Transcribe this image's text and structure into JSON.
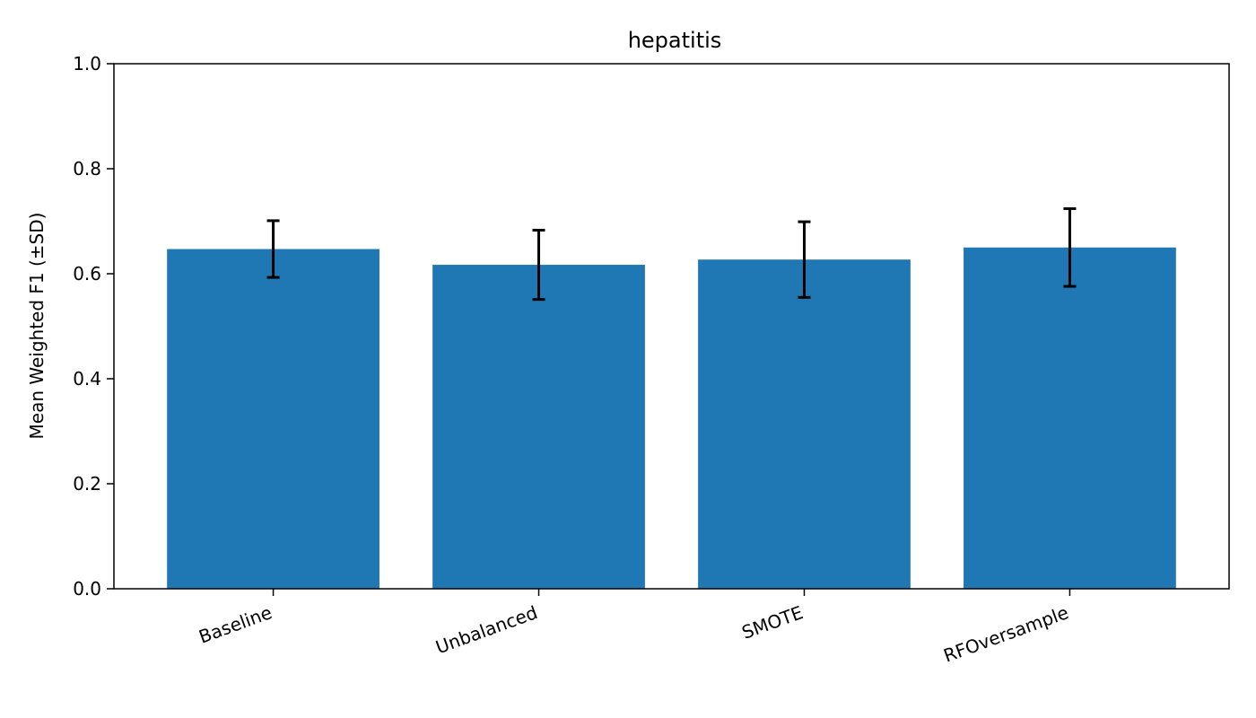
{
  "chart_data": {
    "type": "bar",
    "title": "hepatitis",
    "xlabel": "",
    "ylabel": "Mean Weighted F1 (±SD)",
    "categories": [
      "Baseline",
      "Unbalanced",
      "SMOTE",
      "RFOversample"
    ],
    "values": [
      0.647,
      0.617,
      0.627,
      0.65
    ],
    "error": [
      0.054,
      0.066,
      0.072,
      0.074
    ],
    "ylim": [
      0,
      1.0
    ],
    "yticks": [
      "0.0",
      "0.2",
      "0.4",
      "0.6",
      "0.8",
      "1.0"
    ],
    "grid": false,
    "bar_color": "#1f77b4",
    "error_color": "#000000"
  }
}
